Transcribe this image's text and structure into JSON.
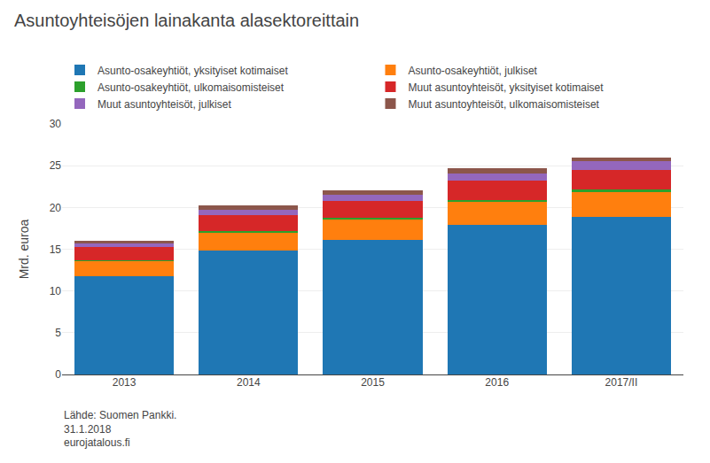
{
  "chart_data": {
    "type": "bar",
    "stacked": true,
    "title": "Asuntoyhteisöjen lainakanta alasektoreittain",
    "y_label": "Mrd. euroa",
    "categories": [
      "2013",
      "2014",
      "2015",
      "2016",
      "2017/II"
    ],
    "series": [
      {
        "name": "Asunto-osakeyhtiöt, yksityiset kotimaiset",
        "values": [
          11.8,
          14.8,
          16.1,
          17.9,
          18.9
        ]
      },
      {
        "name": "Asunto-osakeyhtiöt, julkiset",
        "values": [
          1.8,
          2.2,
          2.5,
          2.8,
          3.0
        ]
      },
      {
        "name": "Asunto-osakeyhtiöt, ulkomaisomisteiset",
        "values": [
          0.12,
          0.15,
          0.17,
          0.19,
          0.21
        ]
      },
      {
        "name": "Muut asuntoyhteisöt, yksityiset kotimaiset",
        "values": [
          1.5,
          1.9,
          2.0,
          2.3,
          2.4
        ]
      },
      {
        "name": "Muut asuntoyhteisöt, julkiset",
        "values": [
          0.5,
          0.7,
          0.8,
          0.9,
          1.0
        ]
      },
      {
        "name": "Muut asuntoyhteisöt, ulkomaisomisteiset",
        "values": [
          0.28,
          0.55,
          0.43,
          0.61,
          0.49
        ]
      }
    ],
    "ylim": [
      0,
      30
    ],
    "yticks": [
      0,
      5,
      10,
      15,
      20,
      25,
      30
    ],
    "grid": true,
    "legend": "top",
    "annotations": [
      "Lähde: Suomen Pankki.\n31.1.2018\neurojatalous.fi"
    ]
  }
}
